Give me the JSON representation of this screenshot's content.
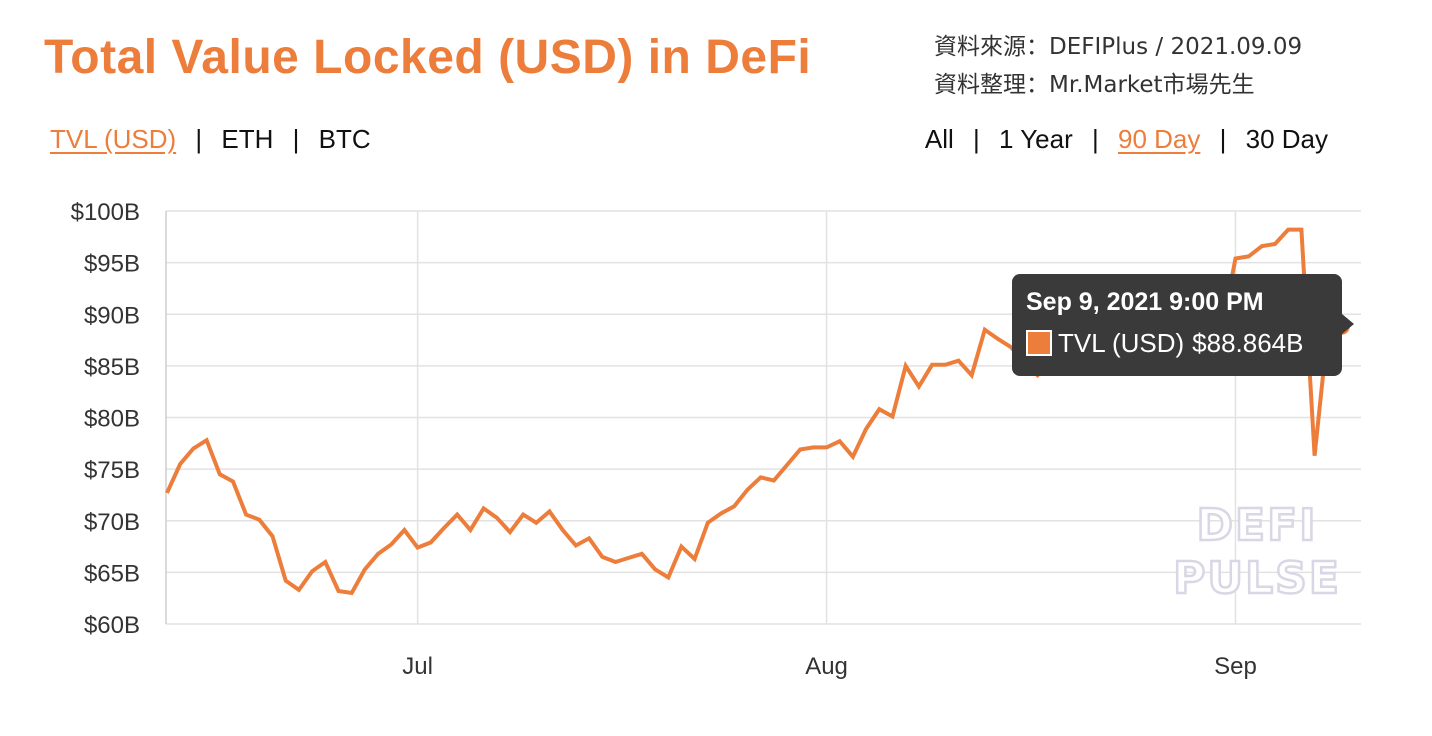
{
  "header": {
    "title": "Total Value Locked (USD) in DeFi",
    "source_line1": "資料來源：DEFIPlus  / 2021.09.09",
    "source_line2": "資料整理：Mr.Market市場先生"
  },
  "metric_tabs": [
    {
      "label": "TVL (USD)",
      "active": true
    },
    {
      "label": "ETH",
      "active": false
    },
    {
      "label": "BTC",
      "active": false
    }
  ],
  "range_tabs": [
    {
      "label": "All",
      "active": false
    },
    {
      "label": "1 Year",
      "active": false
    },
    {
      "label": "90 Day",
      "active": true
    },
    {
      "label": "30 Day",
      "active": false
    }
  ],
  "separator": "|",
  "tooltip": {
    "date": "Sep 9, 2021 9:00 PM",
    "series_label": "TVL (USD)",
    "value_label": "$88.864B"
  },
  "watermark": {
    "line1": "DEFI",
    "line2": "PULSE"
  },
  "colors": {
    "line": "#ed7d3a",
    "grid": "#e2e2e2",
    "tooltip_bg": "#3a3a3a"
  },
  "chart_data": {
    "type": "line",
    "title": "Total Value Locked (USD) in DeFi",
    "series": [
      {
        "name": "TVL (USD)",
        "x": [
          "2021-06-12",
          "2021-06-13",
          "2021-06-14",
          "2021-06-15",
          "2021-06-16",
          "2021-06-17",
          "2021-06-18",
          "2021-06-19",
          "2021-06-20",
          "2021-06-21",
          "2021-06-22",
          "2021-06-23",
          "2021-06-24",
          "2021-06-25",
          "2021-06-26",
          "2021-06-27",
          "2021-06-28",
          "2021-06-29",
          "2021-06-30",
          "2021-07-01",
          "2021-07-02",
          "2021-07-03",
          "2021-07-04",
          "2021-07-05",
          "2021-07-06",
          "2021-07-07",
          "2021-07-08",
          "2021-07-09",
          "2021-07-10",
          "2021-07-11",
          "2021-07-12",
          "2021-07-13",
          "2021-07-14",
          "2021-07-15",
          "2021-07-16",
          "2021-07-17",
          "2021-07-18",
          "2021-07-19",
          "2021-07-20",
          "2021-07-21",
          "2021-07-22",
          "2021-07-23",
          "2021-07-24",
          "2021-07-25",
          "2021-07-26",
          "2021-07-27",
          "2021-07-28",
          "2021-07-29",
          "2021-07-30",
          "2021-07-31",
          "2021-08-01",
          "2021-08-02",
          "2021-08-03",
          "2021-08-04",
          "2021-08-05",
          "2021-08-06",
          "2021-08-07",
          "2021-08-08",
          "2021-08-09",
          "2021-08-10",
          "2021-08-11",
          "2021-08-12",
          "2021-08-13",
          "2021-08-14",
          "2021-08-15",
          "2021-08-16",
          "2021-08-17",
          "2021-08-18",
          "2021-08-19",
          "2021-08-20",
          "2021-08-21",
          "2021-08-22",
          "2021-08-23",
          "2021-08-24",
          "2021-08-25",
          "2021-08-26",
          "2021-08-27",
          "2021-08-28",
          "2021-08-29",
          "2021-08-30",
          "2021-08-31",
          "2021-09-01",
          "2021-09-02",
          "2021-09-03",
          "2021-09-04",
          "2021-09-05",
          "2021-09-06",
          "2021-09-07",
          "2021-09-08",
          "2021-09-09"
        ],
        "values": [
          72.7,
          75.5,
          77.0,
          77.8,
          74.5,
          73.8,
          70.6,
          70.1,
          68.5,
          64.2,
          63.3,
          65.1,
          66.0,
          63.2,
          63.0,
          65.3,
          66.8,
          67.7,
          69.1,
          67.4,
          67.9,
          69.3,
          70.6,
          69.1,
          71.2,
          70.3,
          68.9,
          70.6,
          69.8,
          70.9,
          69.1,
          67.6,
          68.3,
          66.5,
          66.0,
          66.4,
          66.8,
          65.3,
          64.5,
          67.5,
          66.3,
          69.8,
          70.7,
          71.4,
          73.0,
          74.2,
          73.9,
          75.4,
          76.9,
          77.1,
          77.1,
          77.7,
          76.2,
          78.9,
          80.8,
          80.1,
          85.0,
          83.0,
          85.1,
          85.1,
          85.5,
          84.1,
          88.5,
          87.6,
          86.8,
          85.3,
          84.1,
          85.3,
          86.9,
          88.8,
          88.0,
          88.4,
          89.4,
          87.9,
          89.0,
          87.5,
          89.3,
          88.8,
          88.3,
          89.9,
          88.8,
          95.4,
          95.6,
          96.6,
          96.8,
          98.2,
          98.2,
          76.3,
          88.5,
          88.864
        ]
      }
    ],
    "xticks": [
      "Jul",
      "Aug",
      "Sep"
    ],
    "xtick_dates": [
      "2021-07-01",
      "2021-08-01",
      "2021-09-01"
    ],
    "yticks": [
      "$60B",
      "$65B",
      "$70B",
      "$75B",
      "$80B",
      "$85B",
      "$90B",
      "$95B",
      "$100B"
    ],
    "ylim": [
      60,
      100
    ],
    "yunit": "B",
    "grid": true,
    "legend": "none"
  }
}
